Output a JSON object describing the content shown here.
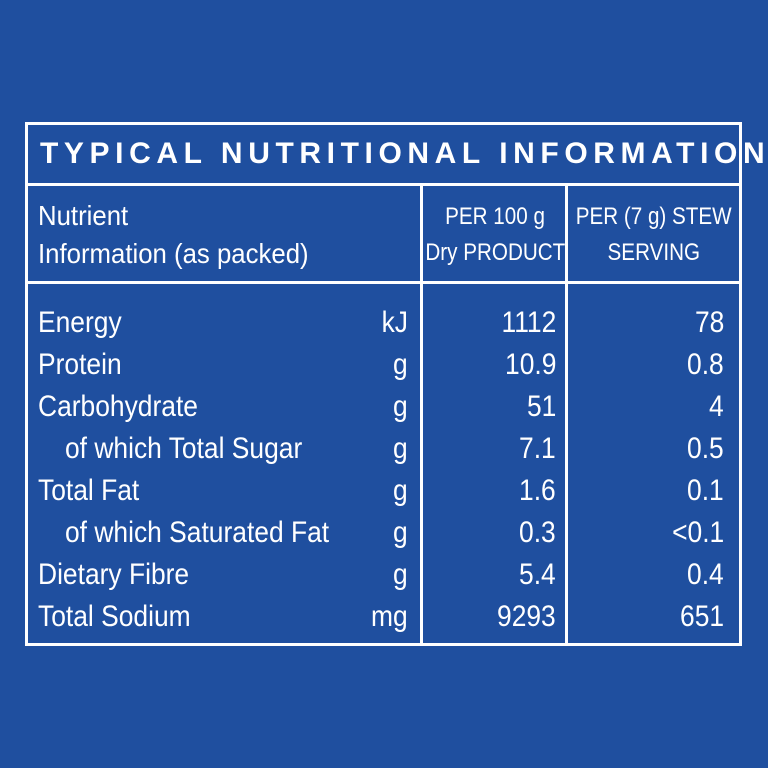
{
  "title": "TYPICAL NUTRITIONAL INFORMATION",
  "headers": {
    "nutrient_line1": "Nutrient",
    "nutrient_line2": "Information (as packed)",
    "per100_line1": "PER 100 g",
    "per100_line2": "Dry PRODUCT",
    "perserving_line1": "PER (7 g) STEW",
    "perserving_line2": "SERVING"
  },
  "rows": [
    {
      "name": "Energy",
      "unit": "kJ",
      "per100": "1112",
      "perserving": "78"
    },
    {
      "name": "Protein",
      "unit": "g",
      "per100": "10.9",
      "perserving": "0.8"
    },
    {
      "name": "Carbohydrate",
      "unit": "g",
      "per100": "51",
      "perserving": "4"
    },
    {
      "name": "of which Total Sugar",
      "unit": "g",
      "per100": "7.1",
      "perserving": "0.5"
    },
    {
      "name": "Total Fat",
      "unit": "g",
      "per100": "1.6",
      "perserving": "0.1"
    },
    {
      "name": "of which Saturated Fat",
      "unit": "g",
      "per100": "0.3",
      "perserving": "<0.1"
    },
    {
      "name": "Dietary Fibre",
      "unit": "g",
      "per100": "5.4",
      "perserving": "0.4"
    },
    {
      "name": "Total Sodium",
      "unit": "mg",
      "per100": "9293",
      "perserving": "651"
    }
  ],
  "colors": {
    "background": "#1f4f9f",
    "foreground": "#ffffff"
  }
}
